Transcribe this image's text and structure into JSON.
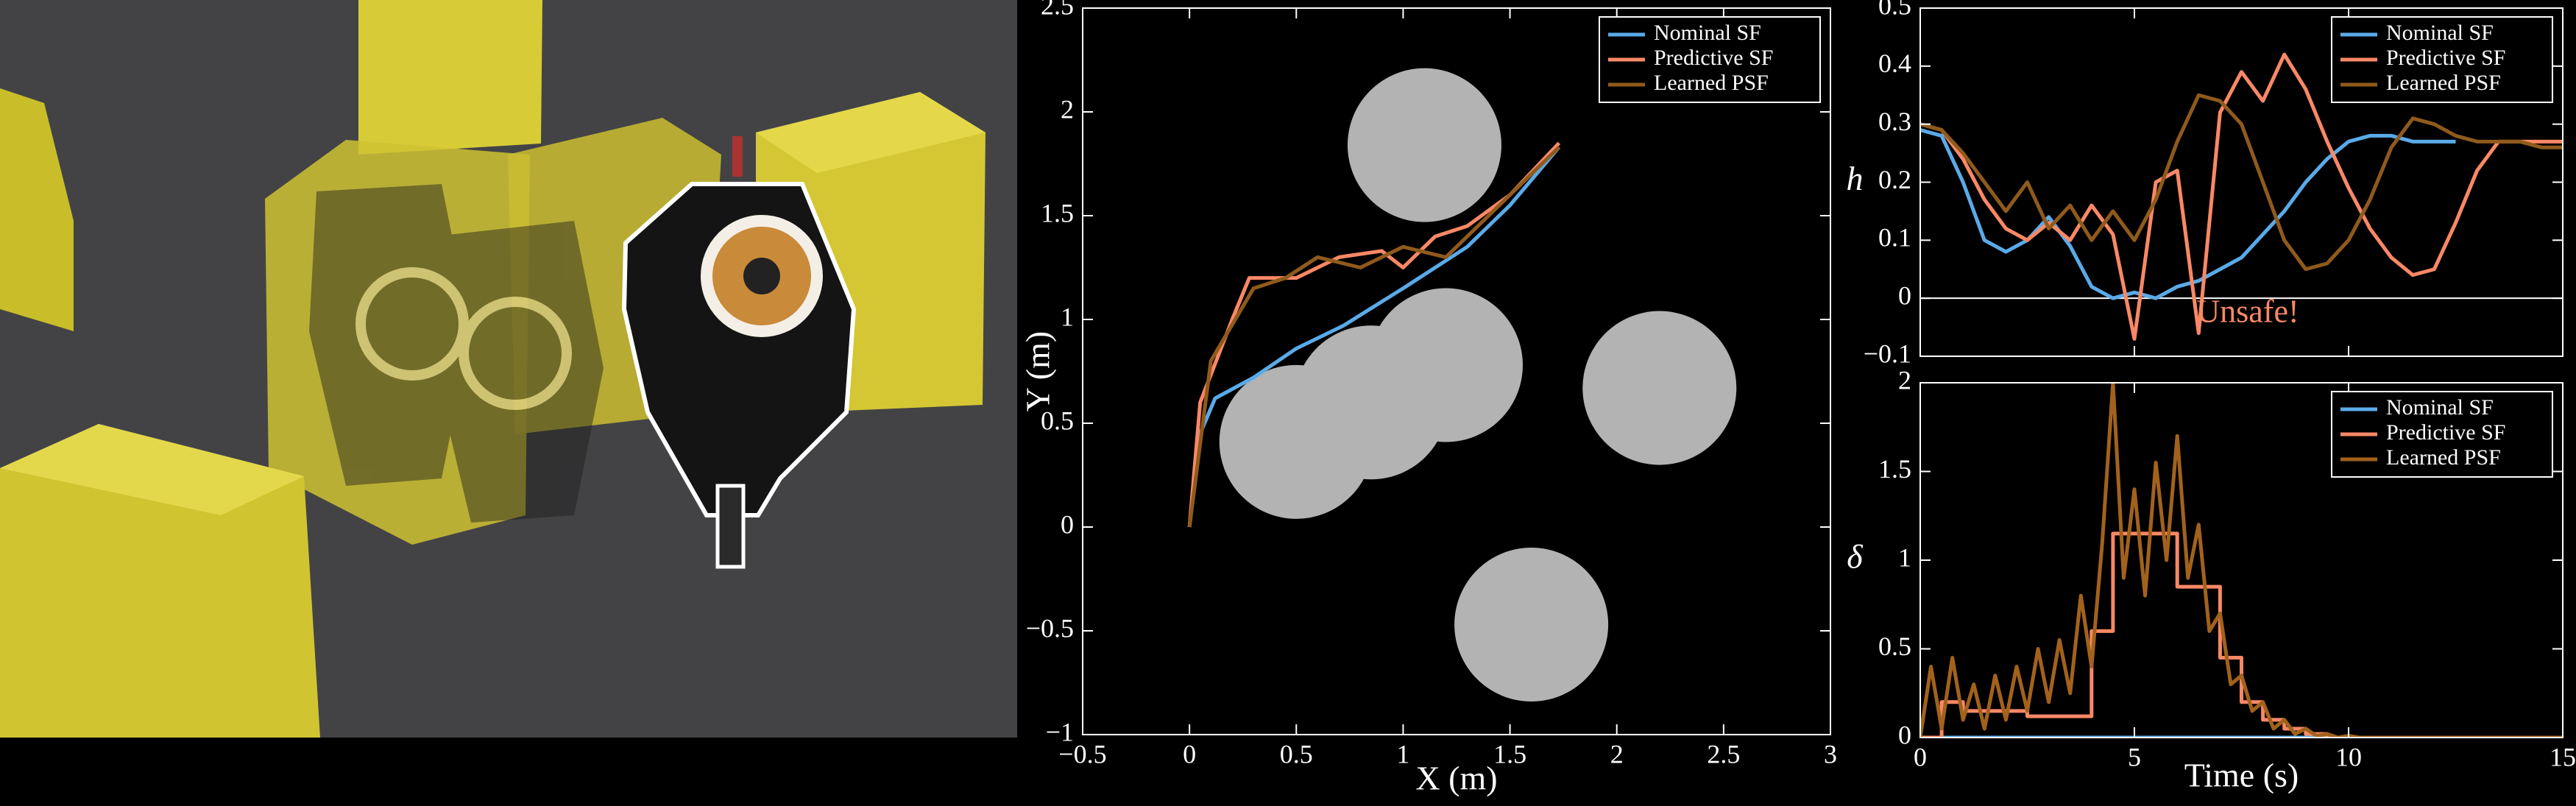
{
  "chart_data": [
    {
      "type": "trajectory",
      "xlabel": "X (m)",
      "ylabel": "Y (m)",
      "xlim": [
        -0.5,
        3
      ],
      "ylim": [
        -1,
        2.5
      ],
      "xticks": [
        {
          "value": -0.5,
          "label": "−0.5"
        },
        0,
        0.5,
        1,
        1.5,
        2,
        2.5,
        3
      ],
      "yticks": [
        {
          "value": -1,
          "label": "−1"
        },
        {
          "value": -0.5,
          "label": "−0.5"
        },
        0,
        0.5,
        1,
        1.5,
        2,
        2.5
      ],
      "legend": "upper right",
      "obstacle_color": "#b3b3b3",
      "obstacles": [
        {
          "x": 1.1,
          "y": 1.84,
          "r": 0.36
        },
        {
          "x": 0.5,
          "y": 0.41,
          "r": 0.36
        },
        {
          "x": 0.85,
          "y": 0.6,
          "r": 0.36
        },
        {
          "x": 1.2,
          "y": 0.78,
          "r": 0.36
        },
        {
          "x": 2.2,
          "y": 0.67,
          "r": 0.36
        },
        {
          "x": 1.6,
          "y": -0.47,
          "r": 0.36
        }
      ],
      "series": [
        {
          "name": "Nominal SF",
          "color": "#5aaae8",
          "x": [
            0,
            0.05,
            0.12,
            0.3,
            0.5,
            0.72,
            1.0,
            1.3,
            1.5,
            1.73
          ],
          "values": [
            0,
            0.45,
            0.62,
            0.72,
            0.86,
            0.97,
            1.15,
            1.35,
            1.55,
            1.83
          ]
        },
        {
          "name": "Predictive SF",
          "color": "#f98866",
          "x": [
            0,
            0.05,
            0.2,
            0.28,
            0.5,
            0.7,
            0.9,
            1.0,
            1.15,
            1.3,
            1.5,
            1.73
          ],
          "values": [
            0,
            0.6,
            1.0,
            1.2,
            1.2,
            1.3,
            1.33,
            1.25,
            1.4,
            1.45,
            1.6,
            1.85
          ]
        },
        {
          "name": "Learned PSF",
          "color": "#8f5a1c",
          "x": [
            0,
            0.1,
            0.3,
            0.45,
            0.6,
            0.8,
            1.0,
            1.2,
            1.4,
            1.6,
            1.73
          ],
          "values": [
            0,
            0.8,
            1.15,
            1.2,
            1.3,
            1.25,
            1.35,
            1.3,
            1.5,
            1.7,
            1.83
          ]
        }
      ]
    },
    {
      "type": "line",
      "ylabel": "h",
      "xlim": [
        0,
        15
      ],
      "ylim": [
        -0.1,
        0.5
      ],
      "xticks": [
        0,
        5,
        10,
        15
      ],
      "yticks": [
        {
          "value": -0.1,
          "label": "−0.1"
        },
        0,
        0.1,
        0.2,
        0.3,
        0.4,
        0.5
      ],
      "reference_line": 0,
      "annotation": "Unsafe!",
      "annotation_color": "#f98866",
      "legend": "upper right",
      "series": [
        {
          "name": "Nominal SF",
          "color": "#5aaae8",
          "x": [
            0,
            0.5,
            1,
            1.5,
            2,
            2.5,
            3,
            3.5,
            4,
            4.5,
            5,
            5.5,
            6,
            6.5,
            7,
            7.5,
            8,
            8.5,
            9,
            9.5,
            10,
            10.5,
            11,
            11.5,
            12,
            12.5,
            13,
            13.5,
            14,
            14.5,
            15
          ],
          "values": [
            0.29,
            0.28,
            0.2,
            0.1,
            0.08,
            0.1,
            0.14,
            0.09,
            0.02,
            0.0,
            0.01,
            0.0,
            0.02,
            0.03,
            0.05,
            0.07,
            0.11,
            0.15,
            0.2,
            0.24,
            0.27,
            0.28,
            0.28,
            0.27,
            0.27,
            0.27,
            null,
            null,
            null,
            null,
            null
          ]
        },
        {
          "name": "Predictive SF",
          "color": "#f98866",
          "x": [
            0,
            0.5,
            1,
            1.5,
            2,
            2.5,
            3,
            3.5,
            4,
            4.5,
            5,
            5.5,
            6,
            6.5,
            7,
            7.5,
            8,
            8.5,
            9,
            9.5,
            10,
            10.5,
            11,
            11.5,
            12,
            12.5,
            13,
            13.5,
            14,
            14.5,
            15
          ],
          "values": [
            0.3,
            0.29,
            0.24,
            0.17,
            0.12,
            0.1,
            0.13,
            0.1,
            0.16,
            0.11,
            -0.07,
            0.2,
            0.22,
            -0.06,
            0.32,
            0.39,
            0.34,
            0.42,
            0.36,
            0.27,
            0.19,
            0.12,
            0.07,
            0.04,
            0.05,
            0.13,
            0.22,
            0.27,
            0.27,
            0.27,
            0.27
          ]
        },
        {
          "name": "Learned PSF",
          "color": "#8f5a1c",
          "x": [
            0,
            0.5,
            1,
            1.5,
            2,
            2.5,
            3,
            3.5,
            4,
            4.5,
            5,
            5.5,
            6,
            6.5,
            7,
            7.5,
            8,
            8.5,
            9,
            9.5,
            10,
            10.5,
            11,
            11.5,
            12,
            12.5,
            13,
            13.5,
            14,
            14.5,
            15
          ],
          "values": [
            0.3,
            0.29,
            0.25,
            0.2,
            0.15,
            0.2,
            0.12,
            0.16,
            0.1,
            0.15,
            0.1,
            0.17,
            0.27,
            0.35,
            0.34,
            0.3,
            0.2,
            0.1,
            0.05,
            0.06,
            0.1,
            0.17,
            0.26,
            0.31,
            0.3,
            0.28,
            0.27,
            0.27,
            0.27,
            0.26,
            0.26
          ]
        }
      ]
    },
    {
      "type": "line",
      "xlabel": "Time (s)",
      "ylabel": "δ",
      "xlim": [
        0,
        15
      ],
      "ylim": [
        0,
        2
      ],
      "xticks": [
        0,
        5,
        10,
        15
      ],
      "yticks": [
        0,
        0.5,
        1,
        1.5,
        2
      ],
      "legend": "upper right",
      "series": [
        {
          "name": "Nominal SF",
          "color": "#5aaae8",
          "x": [
            0,
            12.5
          ],
          "values": [
            0,
            0
          ]
        },
        {
          "name": "Predictive SF",
          "color": "#f98866",
          "step": "post",
          "x": [
            0,
            0.5,
            1,
            1.5,
            2,
            2.5,
            3,
            3.5,
            4,
            4.5,
            5,
            5.5,
            6,
            6.5,
            7,
            7.5,
            8,
            8.5,
            9,
            9.5,
            10,
            10.5,
            11,
            11.5,
            12,
            12.5,
            13,
            13.5,
            14,
            14.5,
            15
          ],
          "values": [
            0,
            0.2,
            0.15,
            0.15,
            0.15,
            0.12,
            0.12,
            0.12,
            0.6,
            1.15,
            1.15,
            1.15,
            0.85,
            0.85,
            0.45,
            0.2,
            0.1,
            0.05,
            0.02,
            0,
            0,
            0,
            0,
            0,
            0,
            0,
            0,
            0,
            0,
            0,
            0
          ]
        },
        {
          "name": "Learned PSF",
          "color": "#a2621c",
          "x": [
            0,
            0.25,
            0.5,
            0.75,
            1,
            1.25,
            1.5,
            1.75,
            2,
            2.25,
            2.5,
            2.75,
            3,
            3.25,
            3.5,
            3.75,
            4,
            4.25,
            4.5,
            4.75,
            5,
            5.25,
            5.5,
            5.75,
            6,
            6.25,
            6.5,
            6.75,
            7,
            7.25,
            7.5,
            7.75,
            8,
            8.25,
            8.5,
            8.75,
            9,
            9.25,
            9.5,
            9.75,
            10,
            10.25,
            10.5,
            15
          ],
          "values": [
            0,
            0.4,
            0.05,
            0.45,
            0.1,
            0.3,
            0.05,
            0.35,
            0.1,
            0.4,
            0.15,
            0.5,
            0.2,
            0.55,
            0.25,
            0.8,
            0.4,
            1.1,
            2.0,
            0.9,
            1.4,
            0.8,
            1.55,
            1.0,
            1.7,
            0.9,
            1.2,
            0.6,
            0.7,
            0.3,
            0.35,
            0.15,
            0.2,
            0.05,
            0.1,
            0.02,
            0.05,
            0.01,
            0.02,
            0,
            0.01,
            0,
            0,
            0
          ]
        }
      ]
    }
  ]
}
